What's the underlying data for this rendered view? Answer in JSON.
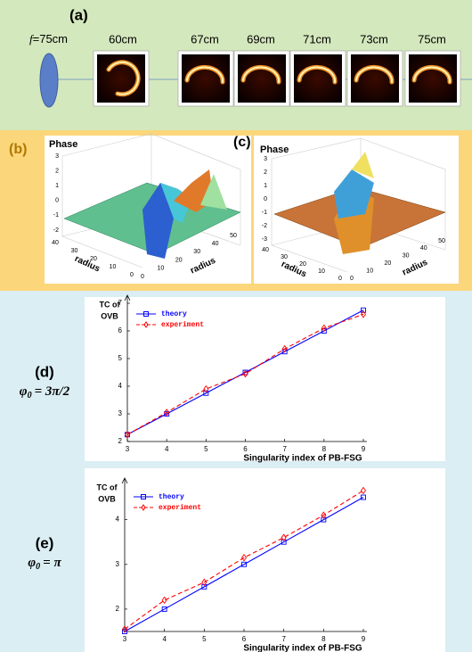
{
  "panel_a": {
    "label": "(a)",
    "focal_symbol": "f",
    "focal_value": "=75cm",
    "distances": [
      "60cm",
      "67cm",
      "69cm",
      "71cm",
      "73cm",
      "75cm"
    ]
  },
  "panel_b": {
    "label": "(b)",
    "title": "Phase",
    "zticks": [
      3,
      2,
      1,
      0,
      -1,
      -2
    ],
    "xticks": [
      40,
      30,
      20,
      10,
      0
    ],
    "yticks": [
      0,
      10,
      20,
      30,
      40,
      50
    ],
    "xlabel": "radius",
    "ylabel": "radius"
  },
  "panel_c": {
    "label": "(c)",
    "title": "Phase",
    "zticks": [
      3,
      2,
      1,
      0,
      -1,
      -2,
      -3
    ],
    "xticks": [
      40,
      30,
      20,
      10,
      0
    ],
    "yticks": [
      0,
      10,
      20,
      30,
      40,
      50
    ],
    "xlabel": "radius",
    "ylabel": "radius"
  },
  "chart_data": [
    {
      "type": "line",
      "panel_label": "(d)",
      "phase_symbol": "φ",
      "phase_subscript": "0",
      "phase_value": "= 3π/2",
      "ylabel": [
        "TC of",
        "OVB"
      ],
      "xlabel": "Singularity index of  PB-FSG",
      "x": [
        3,
        4,
        5,
        6,
        7,
        8,
        9
      ],
      "xlim": [
        3,
        9
      ],
      "xticks": [
        3,
        4,
        5,
        6,
        7,
        8,
        9
      ],
      "ylim": [
        2,
        7
      ],
      "yticks": [
        2,
        3,
        4,
        5,
        6,
        7
      ],
      "legend": "upper left",
      "series": [
        {
          "name": "theory",
          "color": "#0000ff",
          "marker": "square",
          "linestyle": "solid",
          "values": [
            2.25,
            3,
            3.75,
            4.5,
            5.25,
            6,
            6.75
          ]
        },
        {
          "name": "experiment",
          "color": "#ff0000",
          "marker": "diamond",
          "linestyle": "dashed",
          "values": [
            2.25,
            3.05,
            3.9,
            4.45,
            5.35,
            6.1,
            6.6
          ]
        }
      ]
    },
    {
      "type": "line",
      "panel_label": "(e)",
      "phase_symbol": "φ",
      "phase_subscript": "0",
      "phase_value": "= π",
      "ylabel": [
        "TC of",
        "OVB"
      ],
      "xlabel": "Singularity index of  PB-FSG",
      "x": [
        3,
        4,
        5,
        6,
        7,
        8,
        9
      ],
      "xlim": [
        3,
        9
      ],
      "xticks": [
        3,
        4,
        5,
        6,
        7,
        8,
        9
      ],
      "ylim": [
        1.5,
        4.75
      ],
      "yticks": [
        2,
        3,
        4
      ],
      "legend": "upper left",
      "series": [
        {
          "name": "theory",
          "color": "#0000ff",
          "marker": "square",
          "linestyle": "solid",
          "values": [
            1.5,
            2,
            2.5,
            3,
            3.5,
            4,
            4.5
          ]
        },
        {
          "name": "experiment",
          "color": "#ff0000",
          "marker": "diamond",
          "linestyle": "dashed",
          "values": [
            1.55,
            2.2,
            2.6,
            3.15,
            3.6,
            4.1,
            4.65
          ]
        }
      ]
    }
  ]
}
